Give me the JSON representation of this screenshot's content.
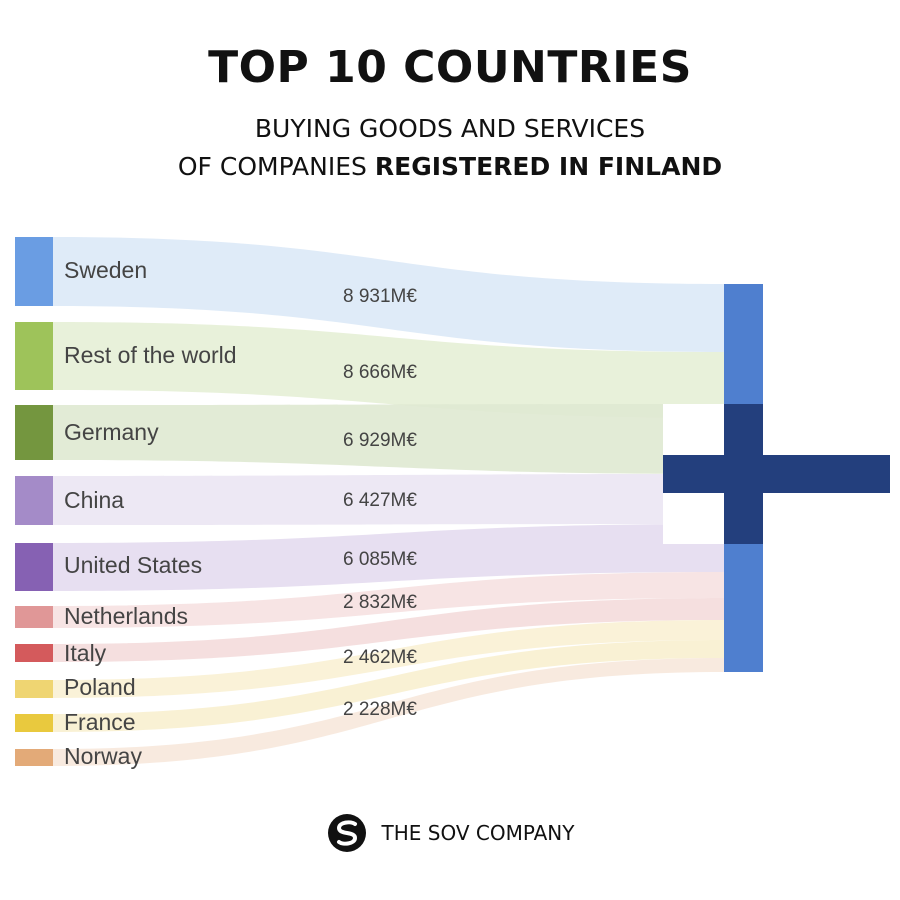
{
  "header": {
    "title": "TOP 10 COUNTRIES",
    "subtitle_line1": "BUYING GOODS AND SERVICES",
    "subtitle_line2_prefix": "OF COMPANIES ",
    "subtitle_line2_bold": "REGISTERED IN FINLAND"
  },
  "chart_data": {
    "type": "sankey",
    "target": "Finland",
    "unit": "M€",
    "sources": [
      {
        "name": "Sweden",
        "color": "#6a9de3",
        "flow_color": "#dce9f7"
      },
      {
        "name": "Rest of the world",
        "color": "#9ec35a",
        "flow_color": "#e5efd6"
      },
      {
        "name": "Germany",
        "color": "#74963f",
        "flow_color": "#dfe9d2"
      },
      {
        "name": "China",
        "color": "#a48bc8",
        "flow_color": "#ebe5f3"
      },
      {
        "name": "United States",
        "color": "#8661b3",
        "flow_color": "#e4dcef"
      },
      {
        "name": "Netherlands",
        "color": "#e09797",
        "flow_color": "#f6e1e1"
      },
      {
        "name": "Italy",
        "color": "#d45a5c",
        "flow_color": "#f4dcdc"
      },
      {
        "name": "Poland",
        "color": "#efd572",
        "flow_color": "#f9f1d4"
      },
      {
        "name": "France",
        "color": "#e9c93e",
        "flow_color": "#f8efcf"
      },
      {
        "name": "Norway",
        "color": "#e3aa78",
        "flow_color": "#f7e8dc"
      }
    ],
    "value_labels": [
      "8 931M€",
      "8 666M€",
      "6 929M€",
      "6 427M€",
      "6 085M€",
      "2 832M€",
      "2 462M€",
      "2 228M€"
    ],
    "flag": {
      "white": "#ffffff",
      "blue": "#233f7d",
      "bar": "#4f7fcf"
    }
  },
  "footer": {
    "logo_icon": "sov-logo-icon",
    "company": "THE SOV COMPANY"
  }
}
